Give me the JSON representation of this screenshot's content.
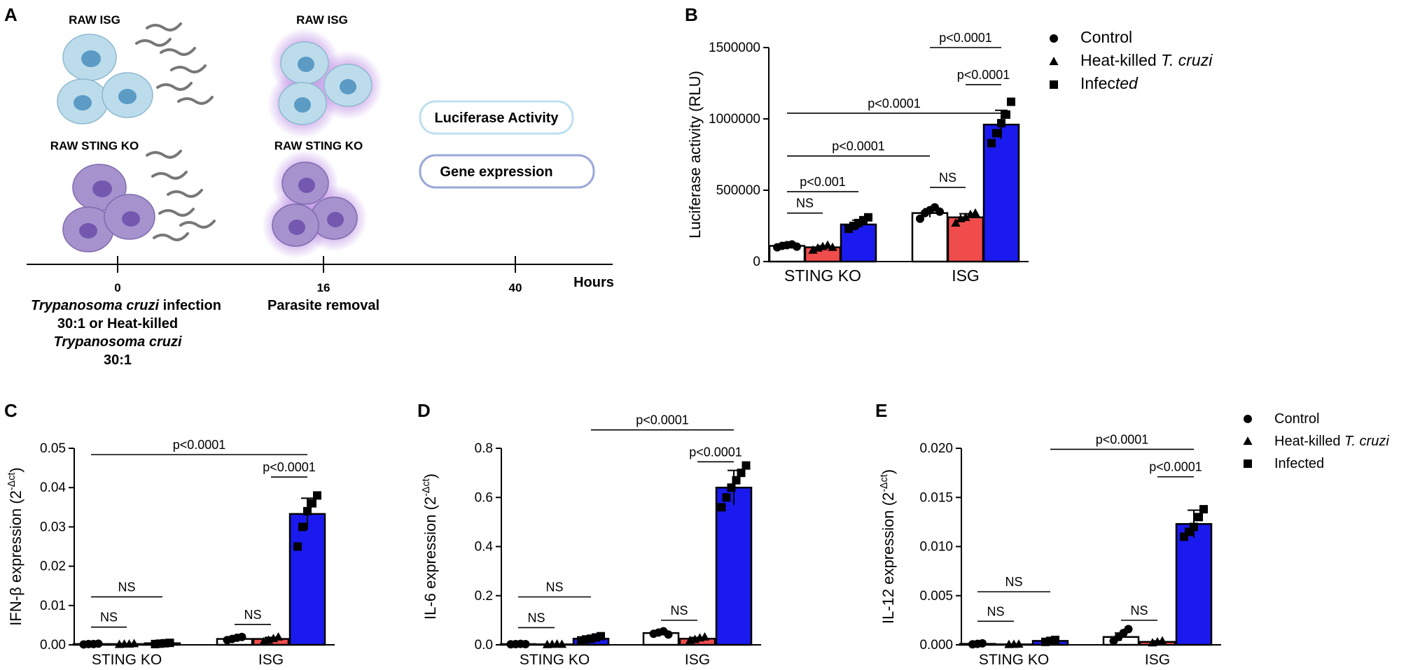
{
  "panels": {
    "A": "A",
    "B": "B",
    "C": "C",
    "D": "D",
    "E": "E"
  },
  "schematic": {
    "cell_labels": {
      "raw_isg_0": "RAW ISG",
      "raw_isg_16": "RAW ISG",
      "raw_sting_0": "RAW STING KO",
      "raw_sting_16": "RAW STING KO"
    },
    "readouts": {
      "luciferase": "Luciferase Activity",
      "gene": "Gene expression"
    },
    "timeline": {
      "ticks": [
        "0",
        "16",
        "40"
      ],
      "unit": "Hours",
      "t0_line1_italic": "Trypanosoma cruzi",
      "t0_line1_rest": " infection",
      "t0_line2": "30:1 or Heat-killed",
      "t0_line3_italic": "Trypanosoma cruzi",
      "t0_line4": "30:1",
      "t16_label": "Parasite removal"
    },
    "colors": {
      "isg_cell": "#bcdcec",
      "isg_nucleus": "#5b9bc4",
      "sting_cell": "#a692cd",
      "sting_nucleus": "#7458b0",
      "glow": "#b07ae0"
    }
  },
  "legend_b": {
    "items": [
      {
        "marker": "circle",
        "text": "Control",
        "italic": ""
      },
      {
        "marker": "triangle",
        "text": "Heat-killed ",
        "italic": "T. cruzi"
      },
      {
        "marker": "square",
        "text": "Infec",
        "italic": "ted"
      }
    ]
  },
  "legend_e": {
    "items": [
      {
        "marker": "circle",
        "text": "Control",
        "italic": ""
      },
      {
        "marker": "triangle",
        "text": "Heat-killed ",
        "italic": "T. cruzi"
      },
      {
        "marker": "square",
        "text": "Infected",
        "italic": ""
      }
    ]
  },
  "colors": {
    "control": "#ffffff",
    "heat_killed": "#f04c4c",
    "infected": "#1a1aee",
    "outline": "#000000"
  },
  "chart_data": [
    {
      "panel": "B",
      "type": "bar",
      "ylabel": "Luciferase activity (RLU)",
      "ylim": [
        0,
        1500000
      ],
      "yticks": [
        "0",
        "500000",
        "1000000",
        "1500000"
      ],
      "categories": [
        "STING KO",
        "ISG"
      ],
      "series": [
        {
          "name": "Control",
          "values": [
            110000,
            340000
          ],
          "errors": [
            8000,
            30000
          ]
        },
        {
          "name": "Heat-killed T. cruzi",
          "values": [
            100000,
            310000
          ],
          "errors": [
            10000,
            25000
          ]
        },
        {
          "name": "Infected",
          "values": [
            260000,
            960000
          ],
          "errors": [
            30000,
            100000
          ]
        }
      ],
      "points": [
        [
          [
            100000,
            110000,
            115000,
            120000,
            105000
          ],
          [
            300000,
            340000,
            360000,
            380000,
            350000
          ]
        ],
        [
          [
            80000,
            95000,
            105000,
            115000,
            100000
          ],
          [
            270000,
            300000,
            310000,
            330000,
            340000
          ]
        ],
        [
          [
            230000,
            250000,
            270000,
            290000,
            310000
          ],
          [
            830000,
            900000,
            970000,
            1030000,
            1120000
          ]
        ]
      ],
      "comparisons": [
        {
          "groups": [
            0,
            1
          ],
          "cat": 0,
          "label": "NS",
          "level": 340000
        },
        {
          "groups": [
            0,
            2
          ],
          "cat": 0,
          "label": "p<0.001",
          "level": 490000
        },
        {
          "groups": [
            0,
            1
          ],
          "cat": 1,
          "label": "NS",
          "level": 520000
        },
        {
          "cross": [
            0,
            0,
            1,
            0
          ],
          "label": "p<0.0001",
          "level": 740000
        },
        {
          "cross": [
            0,
            0,
            1,
            2
          ],
          "label": "p<0.0001",
          "level": 1040000
        },
        {
          "groups": [
            1,
            2
          ],
          "cat": 1,
          "label": "p<0.0001",
          "level": 1240000
        },
        {
          "cross": [
            1,
            0,
            1,
            2
          ],
          "label": "p<0.0001",
          "level": 1500000
        }
      ]
    },
    {
      "panel": "C",
      "type": "bar",
      "ylabel": "IFN-β expression (2",
      "ylabel_sup": "-Δct",
      "ylabel_close": ")",
      "ylim": [
        0,
        0.05
      ],
      "yticks": [
        "0.00",
        "0.01",
        "0.02",
        "0.03",
        "0.04",
        "0.05"
      ],
      "categories": [
        "STING KO",
        "ISG"
      ],
      "series": [
        {
          "name": "Control",
          "values": [
            0.0002,
            0.0015
          ],
          "errors": [
            0.0001,
            0.0003
          ]
        },
        {
          "name": "Heat-killed T. cruzi",
          "values": [
            0.0002,
            0.0015
          ],
          "errors": [
            0.0001,
            0.0004
          ]
        },
        {
          "name": "Infected",
          "values": [
            0.0004,
            0.0333
          ],
          "errors": [
            0.0001,
            0.004
          ]
        }
      ],
      "points": [
        [
          [
            0.0001,
            0.0002,
            0.0002,
            0.0003
          ],
          [
            0.0012,
            0.0015,
            0.0018,
            0.002
          ]
        ],
        [
          [
            0.0001,
            0.0002,
            0.0002,
            0.0003
          ],
          [
            0.0008,
            0.0012,
            0.0016,
            0.002
          ]
        ],
        [
          [
            0.0002,
            0.0003,
            0.0004,
            0.0005
          ],
          [
            0.025,
            0.03,
            0.034,
            0.036,
            0.038
          ]
        ]
      ],
      "comparisons": [
        {
          "groups": [
            0,
            1
          ],
          "cat": 0,
          "label": "NS",
          "level": 0.0045
        },
        {
          "groups": [
            0,
            2
          ],
          "cat": 0,
          "label": "NS",
          "level": 0.0122
        },
        {
          "groups": [
            0,
            1
          ],
          "cat": 1,
          "label": "NS",
          "level": 0.0052
        },
        {
          "groups": [
            1,
            2
          ],
          "cat": 1,
          "label": "p<0.0001",
          "level": 0.0427
        },
        {
          "cross": [
            0,
            0,
            1,
            2
          ],
          "label": "p<0.0001",
          "level": 0.0484
        }
      ]
    },
    {
      "panel": "D",
      "type": "bar",
      "ylabel": "IL-6 expression (2",
      "ylabel_sup": "-Δct",
      "ylabel_close": ")",
      "ylim": [
        0,
        0.8
      ],
      "yticks": [
        "0.0",
        "0.2",
        "0.4",
        "0.6",
        "0.8"
      ],
      "categories": [
        "STING KO",
        "ISG"
      ],
      "series": [
        {
          "name": "Control",
          "values": [
            0.003,
            0.048
          ],
          "errors": [
            0.001,
            0.005
          ]
        },
        {
          "name": "Heat-killed T. cruzi",
          "values": [
            0.002,
            0.025
          ],
          "errors": [
            0.001,
            0.005
          ]
        },
        {
          "name": "Infected",
          "values": [
            0.025,
            0.64
          ],
          "errors": [
            0.005,
            0.07
          ]
        }
      ],
      "points": [
        [
          [
            0.002,
            0.003,
            0.004,
            0.003
          ],
          [
            0.045,
            0.05,
            0.055,
            0.042
          ]
        ],
        [
          [
            0.001,
            0.002,
            0.003,
            0.002
          ],
          [
            0.018,
            0.022,
            0.028,
            0.032
          ]
        ],
        [
          [
            0.018,
            0.022,
            0.025,
            0.03,
            0.035
          ],
          [
            0.56,
            0.6,
            0.64,
            0.67,
            0.7,
            0.73
          ]
        ]
      ],
      "comparisons": [
        {
          "groups": [
            0,
            1
          ],
          "cat": 0,
          "label": "NS",
          "level": 0.07
        },
        {
          "groups": [
            0,
            2
          ],
          "cat": 0,
          "label": "NS",
          "level": 0.195
        },
        {
          "groups": [
            0,
            1
          ],
          "cat": 1,
          "label": "NS",
          "level": 0.1
        },
        {
          "groups": [
            1,
            2
          ],
          "cat": 1,
          "label": "p<0.0001",
          "level": 0.745
        },
        {
          "cross": [
            0,
            2,
            1,
            2
          ],
          "label": "p<0.0001",
          "level": 0.875
        }
      ]
    },
    {
      "panel": "E",
      "type": "bar",
      "ylabel": "IL-12 expression (2",
      "ylabel_sup": "-Δct",
      "ylabel_close": ")",
      "ylim": [
        0,
        0.02
      ],
      "yticks": [
        "0.000",
        "0.005",
        "0.010",
        "0.015",
        "0.020"
      ],
      "categories": [
        "STING KO",
        "ISG"
      ],
      "series": [
        {
          "name": "Control",
          "values": [
            0.0001,
            0.0008
          ],
          "errors": [
            5e-05,
            0.0004
          ]
        },
        {
          "name": "Heat-killed T. cruzi",
          "values": [
            5e-05,
            0.0003
          ],
          "errors": [
            3e-05,
            0.0001
          ]
        },
        {
          "name": "Infected",
          "values": [
            0.0004,
            0.0123
          ],
          "errors": [
            0.0001,
            0.0014
          ]
        }
      ],
      "points": [
        [
          [
            5e-05,
            0.0001,
            0.00015
          ],
          [
            0.0004,
            0.0008,
            0.0012,
            0.0016
          ]
        ],
        [
          [
            3e-05,
            5e-05,
            7e-05
          ],
          [
            0.0002,
            0.0003,
            0.0004
          ]
        ],
        [
          [
            0.0003,
            0.0004,
            0.0005
          ],
          [
            0.011,
            0.0115,
            0.012,
            0.013,
            0.0138
          ]
        ]
      ],
      "comparisons": [
        {
          "groups": [
            0,
            1
          ],
          "cat": 0,
          "label": "NS",
          "level": 0.0024
        },
        {
          "groups": [
            0,
            2
          ],
          "cat": 0,
          "label": "NS",
          "level": 0.0054
        },
        {
          "groups": [
            0,
            1
          ],
          "cat": 1,
          "label": "NS",
          "level": 0.0025
        },
        {
          "groups": [
            1,
            2
          ],
          "cat": 1,
          "label": "p<0.0001",
          "level": 0.0171
        },
        {
          "cross": [
            0,
            2,
            1,
            2
          ],
          "label": "p<0.0001",
          "level": 0.0199
        }
      ]
    }
  ]
}
